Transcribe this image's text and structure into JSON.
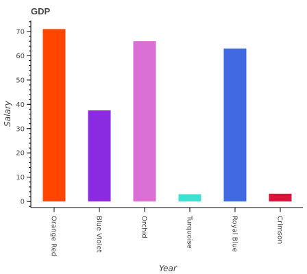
{
  "chart_data": {
    "type": "bar",
    "title": "GDP",
    "xlabel": "Year",
    "ylabel": "Salary",
    "categories": [
      "Orange Red",
      "Blue Violet",
      "Orchid",
      "Turquoise",
      "Royal Blue",
      "Crimson"
    ],
    "values": [
      71,
      37.5,
      66,
      3,
      63,
      3.2
    ],
    "colors": [
      "#FF4500",
      "#8A2BE2",
      "#DA70D6",
      "#40E0D0",
      "#4169E1",
      "#DC143C"
    ],
    "ylim": [
      -2.5,
      74.5
    ],
    "yticks": [
      0,
      10,
      20,
      30,
      40,
      50,
      60,
      70
    ],
    "grid": false,
    "legend": "none"
  }
}
